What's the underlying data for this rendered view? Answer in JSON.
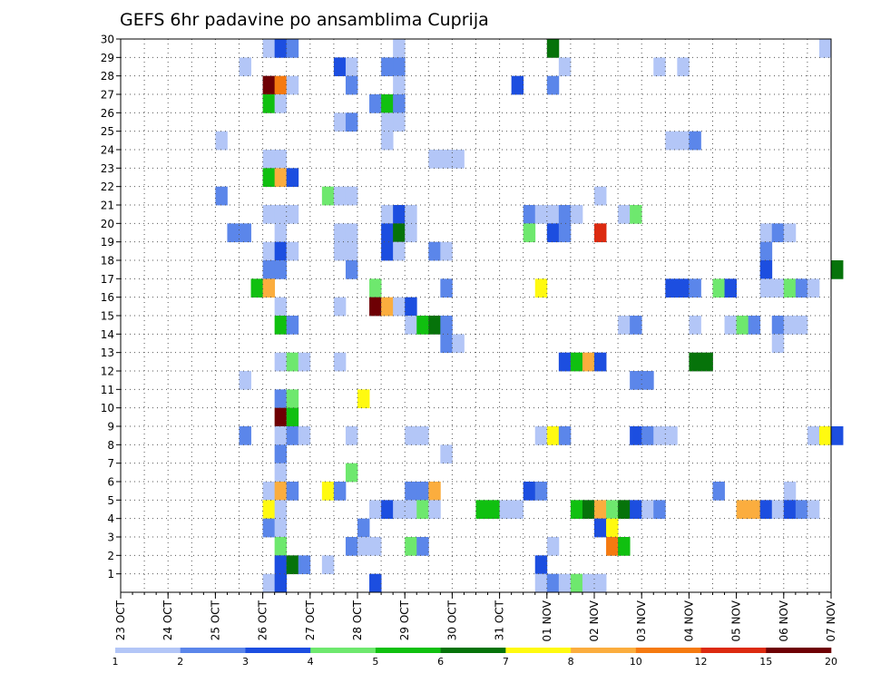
{
  "chart_data": {
    "type": "heatmap",
    "title": "GEFS 6hr padavine po ansamblima Cuprija",
    "xlabel": "",
    "ylabel": "",
    "x_tick_labels": [
      "23 OCT",
      "24 OCT",
      "25 OCT",
      "26 OCT",
      "27 OCT",
      "28 OCT",
      "29 OCT",
      "30 OCT",
      "31 OCT",
      "01 NOV",
      "02 NOV",
      "03 NOV",
      "04 NOV",
      "05 NOV",
      "06 NOV",
      "07 NOV"
    ],
    "y_tick_labels": [
      "1",
      "2",
      "3",
      "4",
      "5",
      "6",
      "7",
      "8",
      "9",
      "10",
      "11",
      "12",
      "13",
      "14",
      "15",
      "16",
      "17",
      "18",
      "19",
      "20",
      "21",
      "22",
      "23",
      "24",
      "25",
      "26",
      "27",
      "28",
      "29",
      "30"
    ],
    "xlim_days": [
      0,
      15
    ],
    "steps_per_day": 4,
    "ylim": [
      0,
      30
    ],
    "grid": true,
    "colorbar": {
      "tick_labels": [
        "1",
        "2",
        "3",
        "4",
        "5",
        "6",
        "7",
        "8",
        "10",
        "12",
        "15",
        "20"
      ],
      "colors": [
        "#b3c6f7",
        "#5b86ea",
        "#1c4ee0",
        "#6ee86e",
        "#10c010",
        "#06730a",
        "#fffa10",
        "#fbad3e",
        "#f57a10",
        "#dc2a10",
        "#6e0004"
      ],
      "placement": "bottom"
    },
    "cells": [
      {
        "member": 30,
        "step": 12,
        "level": 1
      },
      {
        "member": 30,
        "step": 13,
        "level": 3
      },
      {
        "member": 30,
        "step": 14,
        "level": 2
      },
      {
        "member": 30,
        "step": 23,
        "level": 1
      },
      {
        "member": 30,
        "step": 36,
        "level": 6
      },
      {
        "member": 30,
        "step": 59,
        "level": 1
      },
      {
        "member": 29,
        "step": 10,
        "level": 1
      },
      {
        "member": 29,
        "step": 18,
        "level": 3
      },
      {
        "member": 29,
        "step": 19,
        "level": 1
      },
      {
        "member": 29,
        "step": 22,
        "level": 2
      },
      {
        "member": 29,
        "step": 23,
        "level": 2
      },
      {
        "member": 29,
        "step": 37,
        "level": 1
      },
      {
        "member": 29,
        "step": 45,
        "level": 1
      },
      {
        "member": 29,
        "step": 47,
        "level": 1
      },
      {
        "member": 28,
        "step": 12,
        "level": 11
      },
      {
        "member": 28,
        "step": 13,
        "level": 9
      },
      {
        "member": 28,
        "step": 14,
        "level": 1
      },
      {
        "member": 28,
        "step": 19,
        "level": 2
      },
      {
        "member": 28,
        "step": 23,
        "level": 1
      },
      {
        "member": 28,
        "step": 33,
        "level": 3
      },
      {
        "member": 28,
        "step": 36,
        "level": 2
      },
      {
        "member": 27,
        "step": 12,
        "level": 5
      },
      {
        "member": 27,
        "step": 13,
        "level": 1
      },
      {
        "member": 27,
        "step": 21,
        "level": 2
      },
      {
        "member": 27,
        "step": 22,
        "level": 5
      },
      {
        "member": 27,
        "step": 23,
        "level": 2
      },
      {
        "member": 26,
        "step": 18,
        "level": 1
      },
      {
        "member": 26,
        "step": 19,
        "level": 2
      },
      {
        "member": 26,
        "step": 22,
        "level": 1
      },
      {
        "member": 26,
        "step": 23,
        "level": 1
      },
      {
        "member": 25,
        "step": 8,
        "level": 1
      },
      {
        "member": 25,
        "step": 22,
        "level": 1
      },
      {
        "member": 25,
        "step": 46,
        "level": 1
      },
      {
        "member": 25,
        "step": 47,
        "level": 1
      },
      {
        "member": 25,
        "step": 48,
        "level": 2
      },
      {
        "member": 24,
        "step": 12,
        "level": 1
      },
      {
        "member": 24,
        "step": 13,
        "level": 1
      },
      {
        "member": 24,
        "step": 26,
        "level": 1
      },
      {
        "member": 24,
        "step": 27,
        "level": 1
      },
      {
        "member": 24,
        "step": 28,
        "level": 1
      },
      {
        "member": 23,
        "step": 12,
        "level": 5
      },
      {
        "member": 23,
        "step": 13,
        "level": 8
      },
      {
        "member": 23,
        "step": 14,
        "level": 3
      },
      {
        "member": 22,
        "step": 8,
        "level": 2
      },
      {
        "member": 22,
        "step": 17,
        "level": 4
      },
      {
        "member": 22,
        "step": 18,
        "level": 1
      },
      {
        "member": 22,
        "step": 19,
        "level": 1
      },
      {
        "member": 22,
        "step": 40,
        "level": 1
      },
      {
        "member": 21,
        "step": 12,
        "level": 1
      },
      {
        "member": 21,
        "step": 13,
        "level": 1
      },
      {
        "member": 21,
        "step": 14,
        "level": 1
      },
      {
        "member": 21,
        "step": 22,
        "level": 1
      },
      {
        "member": 21,
        "step": 23,
        "level": 3
      },
      {
        "member": 21,
        "step": 24,
        "level": 1
      },
      {
        "member": 21,
        "step": 34,
        "level": 2
      },
      {
        "member": 21,
        "step": 35,
        "level": 1
      },
      {
        "member": 21,
        "step": 36,
        "level": 1
      },
      {
        "member": 21,
        "step": 37,
        "level": 2
      },
      {
        "member": 21,
        "step": 38,
        "level": 1
      },
      {
        "member": 21,
        "step": 42,
        "level": 1
      },
      {
        "member": 21,
        "step": 43,
        "level": 4
      },
      {
        "member": 20,
        "step": 9,
        "level": 2
      },
      {
        "member": 20,
        "step": 10,
        "level": 2
      },
      {
        "member": 20,
        "step": 13,
        "level": 1
      },
      {
        "member": 20,
        "step": 18,
        "level": 1
      },
      {
        "member": 20,
        "step": 19,
        "level": 1
      },
      {
        "member": 20,
        "step": 22,
        "level": 3
      },
      {
        "member": 20,
        "step": 23,
        "level": 6
      },
      {
        "member": 20,
        "step": 24,
        "level": 1
      },
      {
        "member": 20,
        "step": 34,
        "level": 4
      },
      {
        "member": 20,
        "step": 36,
        "level": 3
      },
      {
        "member": 20,
        "step": 37,
        "level": 2
      },
      {
        "member": 20,
        "step": 40,
        "level": 10
      },
      {
        "member": 20,
        "step": 54,
        "level": 1
      },
      {
        "member": 20,
        "step": 55,
        "level": 2
      },
      {
        "member": 20,
        "step": 56,
        "level": 1
      },
      {
        "member": 19,
        "step": 12,
        "level": 1
      },
      {
        "member": 19,
        "step": 13,
        "level": 3
      },
      {
        "member": 19,
        "step": 14,
        "level": 1
      },
      {
        "member": 19,
        "step": 18,
        "level": 1
      },
      {
        "member": 19,
        "step": 19,
        "level": 1
      },
      {
        "member": 19,
        "step": 22,
        "level": 3
      },
      {
        "member": 19,
        "step": 23,
        "level": 1
      },
      {
        "member": 19,
        "step": 26,
        "level": 2
      },
      {
        "member": 19,
        "step": 27,
        "level": 1
      },
      {
        "member": 19,
        "step": 54,
        "level": 2
      },
      {
        "member": 18,
        "step": 12,
        "level": 2
      },
      {
        "member": 18,
        "step": 13,
        "level": 2
      },
      {
        "member": 18,
        "step": 19,
        "level": 2
      },
      {
        "member": 18,
        "step": 54,
        "level": 3
      },
      {
        "member": 18,
        "step": 60,
        "level": 6
      },
      {
        "member": 17,
        "step": 11,
        "level": 5
      },
      {
        "member": 17,
        "step": 12,
        "level": 8
      },
      {
        "member": 17,
        "step": 21,
        "level": 4
      },
      {
        "member": 17,
        "step": 27,
        "level": 2
      },
      {
        "member": 17,
        "step": 35,
        "level": 7
      },
      {
        "member": 17,
        "step": 46,
        "level": 3
      },
      {
        "member": 17,
        "step": 47,
        "level": 3
      },
      {
        "member": 17,
        "step": 48,
        "level": 2
      },
      {
        "member": 17,
        "step": 50,
        "level": 4
      },
      {
        "member": 17,
        "step": 51,
        "level": 3
      },
      {
        "member": 17,
        "step": 54,
        "level": 1
      },
      {
        "member": 17,
        "step": 55,
        "level": 1
      },
      {
        "member": 17,
        "step": 56,
        "level": 4
      },
      {
        "member": 17,
        "step": 57,
        "level": 2
      },
      {
        "member": 17,
        "step": 58,
        "level": 1
      },
      {
        "member": 16,
        "step": 13,
        "level": 1
      },
      {
        "member": 16,
        "step": 18,
        "level": 1
      },
      {
        "member": 16,
        "step": 21,
        "level": 11
      },
      {
        "member": 16,
        "step": 22,
        "level": 8
      },
      {
        "member": 16,
        "step": 23,
        "level": 1
      },
      {
        "member": 16,
        "step": 24,
        "level": 3
      },
      {
        "member": 15,
        "step": 13,
        "level": 5
      },
      {
        "member": 15,
        "step": 14,
        "level": 2
      },
      {
        "member": 15,
        "step": 24,
        "level": 1
      },
      {
        "member": 15,
        "step": 25,
        "level": 5
      },
      {
        "member": 15,
        "step": 26,
        "level": 6
      },
      {
        "member": 15,
        "step": 27,
        "level": 2
      },
      {
        "member": 15,
        "step": 42,
        "level": 1
      },
      {
        "member": 15,
        "step": 43,
        "level": 2
      },
      {
        "member": 15,
        "step": 48,
        "level": 1
      },
      {
        "member": 15,
        "step": 51,
        "level": 1
      },
      {
        "member": 15,
        "step": 52,
        "level": 4
      },
      {
        "member": 15,
        "step": 53,
        "level": 2
      },
      {
        "member": 15,
        "step": 55,
        "level": 2
      },
      {
        "member": 15,
        "step": 56,
        "level": 1
      },
      {
        "member": 15,
        "step": 57,
        "level": 1
      },
      {
        "member": 14,
        "step": 27,
        "level": 2
      },
      {
        "member": 14,
        "step": 28,
        "level": 1
      },
      {
        "member": 14,
        "step": 55,
        "level": 1
      },
      {
        "member": 13,
        "step": 13,
        "level": 1
      },
      {
        "member": 13,
        "step": 14,
        "level": 4
      },
      {
        "member": 13,
        "step": 15,
        "level": 1
      },
      {
        "member": 13,
        "step": 18,
        "level": 1
      },
      {
        "member": 13,
        "step": 37,
        "level": 3
      },
      {
        "member": 13,
        "step": 38,
        "level": 5
      },
      {
        "member": 13,
        "step": 39,
        "level": 8
      },
      {
        "member": 13,
        "step": 40,
        "level": 3
      },
      {
        "member": 13,
        "step": 48,
        "level": 6
      },
      {
        "member": 13,
        "step": 49,
        "level": 6
      },
      {
        "member": 12,
        "step": 10,
        "level": 1
      },
      {
        "member": 12,
        "step": 43,
        "level": 2
      },
      {
        "member": 12,
        "step": 44,
        "level": 2
      },
      {
        "member": 11,
        "step": 13,
        "level": 2
      },
      {
        "member": 11,
        "step": 14,
        "level": 4
      },
      {
        "member": 11,
        "step": 20,
        "level": 7
      },
      {
        "member": 10,
        "step": 13,
        "level": 11
      },
      {
        "member": 10,
        "step": 14,
        "level": 5
      },
      {
        "member": 9,
        "step": 10,
        "level": 2
      },
      {
        "member": 9,
        "step": 13,
        "level": 1
      },
      {
        "member": 9,
        "step": 14,
        "level": 2
      },
      {
        "member": 9,
        "step": 15,
        "level": 1
      },
      {
        "member": 9,
        "step": 19,
        "level": 1
      },
      {
        "member": 9,
        "step": 24,
        "level": 1
      },
      {
        "member": 9,
        "step": 25,
        "level": 1
      },
      {
        "member": 9,
        "step": 35,
        "level": 1
      },
      {
        "member": 9,
        "step": 36,
        "level": 7
      },
      {
        "member": 9,
        "step": 37,
        "level": 2
      },
      {
        "member": 9,
        "step": 43,
        "level": 3
      },
      {
        "member": 9,
        "step": 44,
        "level": 2
      },
      {
        "member": 9,
        "step": 45,
        "level": 1
      },
      {
        "member": 9,
        "step": 46,
        "level": 1
      },
      {
        "member": 9,
        "step": 58,
        "level": 1
      },
      {
        "member": 9,
        "step": 59,
        "level": 7
      },
      {
        "member": 9,
        "step": 60,
        "level": 3
      },
      {
        "member": 8,
        "step": 13,
        "level": 2
      },
      {
        "member": 8,
        "step": 27,
        "level": 1
      },
      {
        "member": 7,
        "step": 13,
        "level": 1
      },
      {
        "member": 7,
        "step": 19,
        "level": 4
      },
      {
        "member": 6,
        "step": 12,
        "level": 1
      },
      {
        "member": 6,
        "step": 13,
        "level": 8
      },
      {
        "member": 6,
        "step": 14,
        "level": 2
      },
      {
        "member": 6,
        "step": 17,
        "level": 7
      },
      {
        "member": 6,
        "step": 18,
        "level": 2
      },
      {
        "member": 6,
        "step": 24,
        "level": 2
      },
      {
        "member": 6,
        "step": 25,
        "level": 2
      },
      {
        "member": 6,
        "step": 26,
        "level": 8
      },
      {
        "member": 6,
        "step": 34,
        "level": 3
      },
      {
        "member": 6,
        "step": 35,
        "level": 2
      },
      {
        "member": 6,
        "step": 50,
        "level": 2
      },
      {
        "member": 6,
        "step": 56,
        "level": 1
      },
      {
        "member": 5,
        "step": 12,
        "level": 7
      },
      {
        "member": 5,
        "step": 13,
        "level": 1
      },
      {
        "member": 5,
        "step": 21,
        "level": 1
      },
      {
        "member": 5,
        "step": 22,
        "level": 3
      },
      {
        "member": 5,
        "step": 23,
        "level": 1
      },
      {
        "member": 5,
        "step": 24,
        "level": 1
      },
      {
        "member": 5,
        "step": 25,
        "level": 4
      },
      {
        "member": 5,
        "step": 26,
        "level": 1
      },
      {
        "member": 5,
        "step": 30,
        "level": 5
      },
      {
        "member": 5,
        "step": 31,
        "level": 5
      },
      {
        "member": 5,
        "step": 32,
        "level": 1
      },
      {
        "member": 5,
        "step": 33,
        "level": 1
      },
      {
        "member": 5,
        "step": 38,
        "level": 5
      },
      {
        "member": 5,
        "step": 39,
        "level": 6
      },
      {
        "member": 5,
        "step": 40,
        "level": 8
      },
      {
        "member": 5,
        "step": 41,
        "level": 4
      },
      {
        "member": 5,
        "step": 42,
        "level": 6
      },
      {
        "member": 5,
        "step": 43,
        "level": 3
      },
      {
        "member": 5,
        "step": 44,
        "level": 1
      },
      {
        "member": 5,
        "step": 45,
        "level": 2
      },
      {
        "member": 5,
        "step": 52,
        "level": 8
      },
      {
        "member": 5,
        "step": 53,
        "level": 8
      },
      {
        "member": 5,
        "step": 54,
        "level": 3
      },
      {
        "member": 5,
        "step": 55,
        "level": 1
      },
      {
        "member": 5,
        "step": 56,
        "level": 3
      },
      {
        "member": 5,
        "step": 57,
        "level": 2
      },
      {
        "member": 5,
        "step": 58,
        "level": 1
      },
      {
        "member": 4,
        "step": 12,
        "level": 2
      },
      {
        "member": 4,
        "step": 13,
        "level": 1
      },
      {
        "member": 4,
        "step": 20,
        "level": 2
      },
      {
        "member": 4,
        "step": 40,
        "level": 3
      },
      {
        "member": 4,
        "step": 41,
        "level": 7
      },
      {
        "member": 3,
        "step": 13,
        "level": 4
      },
      {
        "member": 3,
        "step": 19,
        "level": 2
      },
      {
        "member": 3,
        "step": 20,
        "level": 1
      },
      {
        "member": 3,
        "step": 21,
        "level": 1
      },
      {
        "member": 3,
        "step": 24,
        "level": 4
      },
      {
        "member": 3,
        "step": 25,
        "level": 2
      },
      {
        "member": 3,
        "step": 36,
        "level": 1
      },
      {
        "member": 3,
        "step": 41,
        "level": 9
      },
      {
        "member": 3,
        "step": 42,
        "level": 5
      },
      {
        "member": 2,
        "step": 13,
        "level": 3
      },
      {
        "member": 2,
        "step": 14,
        "level": 6
      },
      {
        "member": 2,
        "step": 15,
        "level": 2
      },
      {
        "member": 2,
        "step": 17,
        "level": 1
      },
      {
        "member": 2,
        "step": 35,
        "level": 3
      },
      {
        "member": 1,
        "step": 12,
        "level": 1
      },
      {
        "member": 1,
        "step": 13,
        "level": 3
      },
      {
        "member": 1,
        "step": 21,
        "level": 3
      },
      {
        "member": 1,
        "step": 35,
        "level": 1
      },
      {
        "member": 1,
        "step": 36,
        "level": 2
      },
      {
        "member": 1,
        "step": 37,
        "level": 1
      },
      {
        "member": 1,
        "step": 38,
        "level": 4
      },
      {
        "member": 1,
        "step": 39,
        "level": 1
      },
      {
        "member": 1,
        "step": 40,
        "level": 1
      }
    ]
  }
}
